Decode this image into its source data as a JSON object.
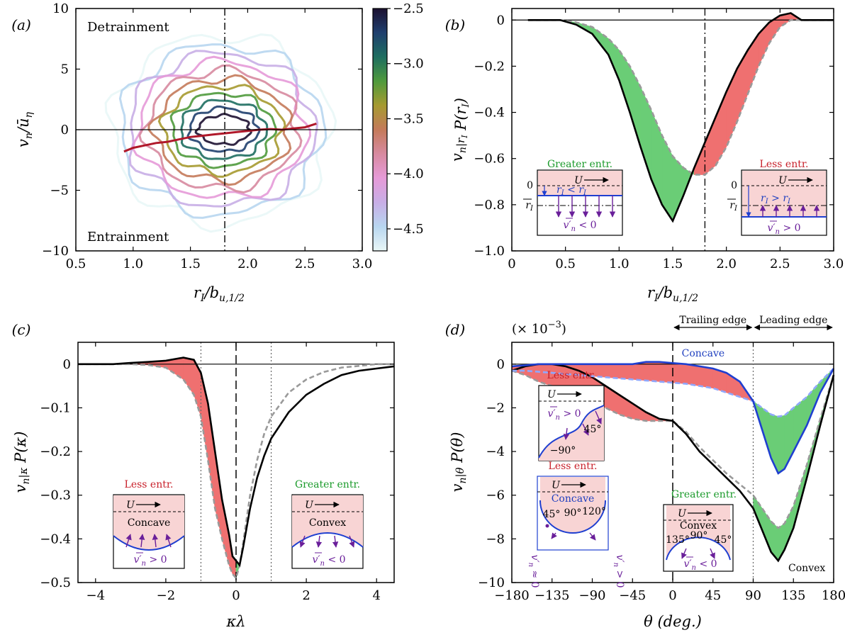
{
  "colors": {
    "red_fill": "#ef7070",
    "green_fill": "#6acd76",
    "black_line": "#000000",
    "grey_dashed": "#9a9a9a",
    "blue_line": "#1f3fd0",
    "light_blue_dashed": "#8fa8ff",
    "crimson_line": "#b0182a",
    "inset_pink": "#f8d4d4",
    "purple_arrow": "#6a1f9a"
  },
  "chart_data": [
    {
      "panel": "(a)",
      "type": "contour",
      "xlabel": "r_I / b_{u,1/2}",
      "xlabel_main": "r",
      "xlabel_sub": "I",
      "xlabel_den": "/b",
      "xlabel_den_sub": "u,1/2",
      "ylabel": "v_n / ū_η",
      "ylabel_main": "v",
      "ylabel_sub": "n",
      "ylabel_den": "/ū",
      "ylabel_den_sub": "η",
      "xlim": [
        0.5,
        3.0
      ],
      "ylim": [
        -10,
        10
      ],
      "xticks": [
        "0.5",
        "1.0",
        "1.5",
        "2.0",
        "2.5",
        "3.0"
      ],
      "yticks": [
        "10",
        "5",
        "0",
        "−5",
        "−10"
      ],
      "top_text": "Detrainment",
      "bottom_text": "Entrainment",
      "vline_x": 1.8,
      "hline_y": 0,
      "colorbar": {
        "range": [
          -4.7,
          -2.5
        ],
        "ticks": [
          "−2.5",
          "−3.0",
          "−3.5",
          "−4.0",
          "−4.5"
        ],
        "tick_values": [
          -2.5,
          -3.0,
          -3.5,
          -4.0,
          -4.5
        ]
      },
      "contour_levels": [
        -4.6,
        -4.4,
        -4.2,
        -4.0,
        -3.8,
        -3.6,
        -3.4,
        -3.2,
        -3.0,
        -2.8,
        -2.6
      ],
      "contour_center": [
        1.8,
        0.0
      ],
      "contour_semi_axes_x": [
        0.92,
        0.85,
        0.78,
        0.71,
        0.64,
        0.57,
        0.5,
        0.43,
        0.36,
        0.29,
        0.22
      ],
      "contour_semi_axes_y": [
        7.8,
        7.0,
        6.3,
        5.6,
        4.9,
        4.2,
        3.6,
        3.0,
        2.4,
        1.8,
        1.2
      ],
      "mean_curve": {
        "x": [
          0.92,
          1.0,
          1.1,
          1.2,
          1.3,
          1.4,
          1.5,
          1.6,
          1.7,
          1.8,
          1.9,
          2.0,
          2.1,
          2.2,
          2.3,
          2.4,
          2.5,
          2.6
        ],
        "y": [
          -1.8,
          -1.5,
          -1.3,
          -1.1,
          -1.0,
          -0.8,
          -0.6,
          -0.5,
          -0.4,
          -0.3,
          -0.2,
          -0.1,
          0.0,
          0.05,
          0.0,
          0.1,
          0.2,
          0.5
        ]
      }
    },
    {
      "panel": "(b)",
      "type": "line",
      "xlabel": "r_I / b_{u,1/2}",
      "xlabel_main": "r",
      "xlabel_sub": "I",
      "xlabel_den": "/b",
      "xlabel_den_sub": "u,1/2",
      "ylabel": "v̄_n|_{r_I} P(r_I)",
      "ylabel_main": "v",
      "ylabel_sub": "n",
      "ylabel_cond": "|r",
      "ylabel_tail": "P(r",
      "xlim": [
        0.0,
        3.0
      ],
      "ylim": [
        -1.0,
        0.05
      ],
      "xticks": [
        "0",
        "0.5",
        "1.0",
        "1.5",
        "2.0",
        "2.5",
        "3.0"
      ],
      "yticks": [
        "0",
        "−0.2",
        "−0.4",
        "−0.6",
        "−0.8",
        "−1.0"
      ],
      "vline_x": 1.8,
      "x": [
        0.15,
        0.3,
        0.45,
        0.6,
        0.75,
        0.9,
        1.0,
        1.1,
        1.2,
        1.3,
        1.4,
        1.5,
        1.6,
        1.7,
        1.8,
        1.9,
        2.0,
        2.1,
        2.2,
        2.3,
        2.4,
        2.5,
        2.6,
        2.7,
        2.8,
        2.9,
        3.0
      ],
      "series": [
        {
          "name": "solid",
          "values": [
            0.0,
            0.0,
            0.0,
            -0.02,
            -0.06,
            -0.15,
            -0.26,
            -0.4,
            -0.55,
            -0.69,
            -0.8,
            -0.87,
            -0.76,
            -0.64,
            -0.53,
            -0.42,
            -0.31,
            -0.21,
            -0.13,
            -0.06,
            -0.01,
            0.02,
            0.03,
            0.0,
            0.0,
            0.0,
            0.0
          ]
        },
        {
          "name": "dashed",
          "values": [
            0.0,
            0.0,
            0.0,
            -0.01,
            -0.03,
            -0.08,
            -0.13,
            -0.2,
            -0.29,
            -0.39,
            -0.5,
            -0.59,
            -0.64,
            -0.67,
            -0.67,
            -0.63,
            -0.55,
            -0.44,
            -0.32,
            -0.2,
            -0.1,
            -0.03,
            0.0,
            0.0,
            0.0,
            0.0,
            0.0
          ]
        }
      ],
      "insets": [
        {
          "title": "Greater entr.",
          "flow_label": "U",
          "zero_label": "0",
          "mean_label": "r̄_I",
          "mean_label_main": "r",
          "mean_label_sub": "I",
          "relation": "r_I < r̄_I",
          "relation_text": "r",
          "relation_sub": "I",
          "relation_op": " < r",
          "relation_sub2": "I",
          "vn_label": "v′n < 0",
          "vn_main": "v",
          "vn_sub": "n",
          "vn_op": " < 0"
        },
        {
          "title": "Less entr.",
          "flow_label": "U",
          "zero_label": "0",
          "mean_label": "r̄_I",
          "mean_label_main": "r",
          "mean_label_sub": "I",
          "relation": "r_I > r̄_I",
          "relation_text": "r",
          "relation_sub": "I",
          "relation_op": " > r",
          "relation_sub2": "I",
          "vn_label": "v′n > 0",
          "vn_main": "v",
          "vn_sub": "n",
          "vn_op": " > 0"
        }
      ]
    },
    {
      "panel": "(c)",
      "type": "line",
      "xlabel": "κλ",
      "ylabel": "v̄_n|_κ P(κ)",
      "ylabel_main": "v",
      "ylabel_sub": "n",
      "ylabel_cond": "|κ",
      "ylabel_tail": "P(κ)",
      "xlim": [
        -4.5,
        4.5
      ],
      "ylim": [
        -0.5,
        0.05
      ],
      "xticks": [
        "−4",
        "−2",
        "0",
        "2",
        "4"
      ],
      "yticks": [
        "0",
        "−0.1",
        "−0.2",
        "−0.3",
        "−0.4",
        "−0.5"
      ],
      "vlines_dotted": [
        -1,
        1
      ],
      "vline_dashed": 0,
      "x": [
        -4.5,
        -4.0,
        -3.5,
        -3.0,
        -2.5,
        -2.0,
        -1.5,
        -1.2,
        -1.0,
        -0.8,
        -0.6,
        -0.4,
        -0.2,
        -0.1,
        0.0,
        0.1,
        0.2,
        0.4,
        0.6,
        0.8,
        1.0,
        1.5,
        2.0,
        2.5,
        3.0,
        3.5,
        4.0,
        4.5
      ],
      "series": [
        {
          "name": "solid",
          "values": [
            0.0,
            0.0,
            0.0,
            0.003,
            0.005,
            0.008,
            0.015,
            0.01,
            -0.02,
            -0.09,
            -0.2,
            -0.31,
            -0.39,
            -0.44,
            -0.45,
            -0.46,
            -0.42,
            -0.33,
            -0.26,
            -0.21,
            -0.17,
            -0.11,
            -0.07,
            -0.045,
            -0.025,
            -0.015,
            -0.01,
            -0.005
          ]
        },
        {
          "name": "dashed",
          "values": [
            0.0,
            0.0,
            0.0,
            0.0,
            -0.002,
            -0.008,
            -0.035,
            -0.07,
            -0.12,
            -0.22,
            -0.33,
            -0.4,
            -0.46,
            -0.48,
            -0.49,
            -0.46,
            -0.41,
            -0.3,
            -0.22,
            -0.16,
            -0.12,
            -0.065,
            -0.035,
            -0.018,
            -0.008,
            -0.004,
            0.0,
            0.0
          ]
        }
      ],
      "insets": [
        {
          "title": "Less entr.",
          "flow_label": "U",
          "shape": "Concave",
          "vn_label": "v′n > 0",
          "vn_main": "v",
          "vn_sub": "n",
          "vn_op": " > 0"
        },
        {
          "title": "Greater entr.",
          "flow_label": "U",
          "shape": "Convex",
          "vn_label": "v′n < 0",
          "vn_main": "v",
          "vn_sub": "n",
          "vn_op": " < 0"
        }
      ]
    },
    {
      "panel": "(d)",
      "type": "line",
      "xlabel": "θ (deg.)",
      "ylabel": "v̄_n|_θ P(θ)",
      "ylabel_main": "v",
      "ylabel_sub": "n",
      "ylabel_cond": "|θ",
      "ylabel_tail": "P(θ)",
      "scale_label": "(× 10",
      "scale_exp": "−3",
      "scale_close": ")",
      "xlim": [
        -180,
        180
      ],
      "ylim": [
        -10,
        1
      ],
      "xticks": [
        "−180",
        "−135",
        "−90",
        "−45",
        "0",
        "45",
        "90",
        "135",
        "180"
      ],
      "yticks": [
        "0",
        "−2",
        "−4",
        "−6",
        "−8",
        "−10"
      ],
      "vline_dashed": 0,
      "vline_dotted": 90,
      "region_labels": [
        "Trailing edge",
        "Leading edge"
      ],
      "concave_label": "Concave",
      "convex_label": "Convex",
      "x": [
        -180,
        -165,
        -150,
        -135,
        -120,
        -105,
        -90,
        -75,
        -60,
        -45,
        -30,
        -15,
        0,
        15,
        30,
        45,
        60,
        75,
        90,
        100,
        110,
        118,
        125,
        135,
        150,
        165,
        180
      ],
      "series": [
        {
          "name": "convex_solid",
          "values": [
            -0.3,
            -0.1,
            0.0,
            0.0,
            -0.1,
            -0.3,
            -0.6,
            -1.0,
            -1.4,
            -1.8,
            -2.2,
            -2.5,
            -2.6,
            -3.2,
            -4.0,
            -4.6,
            -5.2,
            -5.8,
            -6.6,
            -7.6,
            -8.6,
            -9.0,
            -8.5,
            -7.5,
            -5.2,
            -2.8,
            -0.5
          ]
        },
        {
          "name": "convex_dashed",
          "values": [
            -0.3,
            -0.5,
            -0.8,
            -1.0,
            -1.2,
            -1.4,
            -1.7,
            -2.0,
            -2.3,
            -2.5,
            -2.6,
            -2.6,
            -2.6,
            -3.1,
            -3.8,
            -4.4,
            -5.0,
            -5.5,
            -6.0,
            -6.6,
            -7.2,
            -7.5,
            -7.3,
            -6.5,
            -4.6,
            -2.5,
            -0.5
          ]
        },
        {
          "name": "concave_solid",
          "values": [
            -0.1,
            -0.05,
            0.0,
            0.0,
            0.0,
            0.0,
            0.0,
            0.0,
            0.0,
            0.0,
            0.1,
            0.1,
            0.05,
            0.0,
            -0.1,
            -0.2,
            -0.4,
            -0.8,
            -1.7,
            -3.0,
            -4.3,
            -5.0,
            -4.8,
            -4.0,
            -2.8,
            -1.3,
            -0.2
          ]
        },
        {
          "name": "concave_dashed",
          "values": [
            -0.3,
            -0.3,
            -0.35,
            -0.4,
            -0.45,
            -0.5,
            -0.55,
            -0.6,
            -0.65,
            -0.7,
            -0.75,
            -0.8,
            -0.85,
            -0.9,
            -1.0,
            -1.1,
            -1.3,
            -1.5,
            -1.7,
            -2.0,
            -2.3,
            -2.4,
            -2.35,
            -2.0,
            -1.5,
            -0.8,
            -0.2
          ]
        }
      ],
      "insets": [
        {
          "title": "Less entr.",
          "flow_label": "U",
          "vn_label": "v′n > 0",
          "vn_main": "v",
          "vn_sub": "n",
          "vn_op": " > 0",
          "angles": [
            "45°",
            "−90°"
          ]
        },
        {
          "title": "Less entr.",
          "flow_label": "U",
          "shape": "Concave",
          "angles": [
            "45°",
            "90°",
            "120°"
          ],
          "left_label": "v′n ≈ 0",
          "right_label": "v′n > 0",
          "left_main": "v",
          "left_sub": "n",
          "left_op": " ≈ 0",
          "right_main": "v",
          "right_sub": "n",
          "right_op": " > 0"
        },
        {
          "title": "Greater entr.",
          "flow_label": "U",
          "shape": "Convex",
          "angles": [
            "135°",
            "90°",
            "45°"
          ],
          "vn_label": "v′n < 0",
          "vn_main": "v",
          "vn_sub": "n",
          "vn_op": " < 0"
        }
      ]
    }
  ]
}
